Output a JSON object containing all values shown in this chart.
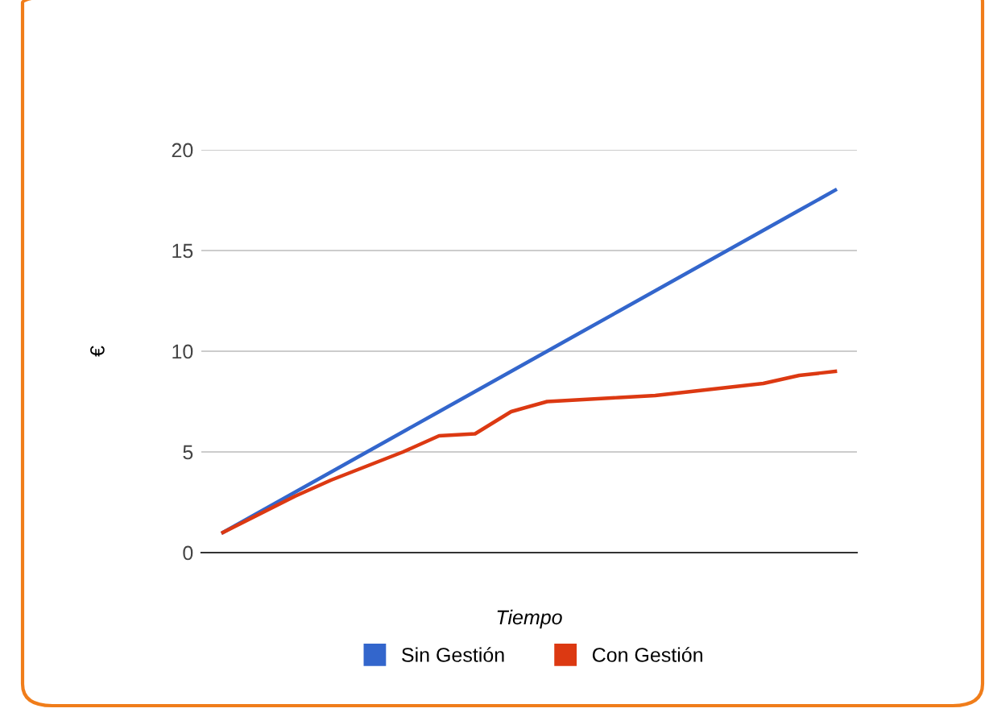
{
  "chart_data": {
    "type": "line",
    "xlabel": "Tiempo",
    "ylabel": "€",
    "categories": [
      null,
      null,
      null,
      null,
      null,
      null,
      null,
      null,
      null,
      null,
      null,
      null,
      null,
      null,
      null,
      null,
      null,
      null
    ],
    "series": [
      {
        "name": "Sin Gestión",
        "color": "#3366cc",
        "values": [
          1,
          2,
          3,
          4,
          5,
          6,
          7,
          8,
          9,
          10,
          11,
          12,
          13,
          14,
          15,
          16,
          17,
          18
        ]
      },
      {
        "name": "Con Gestión",
        "color": "#dc3912",
        "values": [
          1.0,
          1.9,
          2.8,
          3.6,
          4.3,
          5.0,
          5.8,
          5.9,
          7.0,
          7.5,
          7.6,
          7.7,
          7.8,
          8.0,
          8.2,
          8.4,
          8.8,
          9.0
        ]
      }
    ],
    "ylim": [
      0,
      20
    ],
    "yticks": [
      0,
      5,
      10,
      15,
      20
    ],
    "grid": "y",
    "legend": "bottom",
    "marker": "none",
    "line_style": "solid"
  }
}
